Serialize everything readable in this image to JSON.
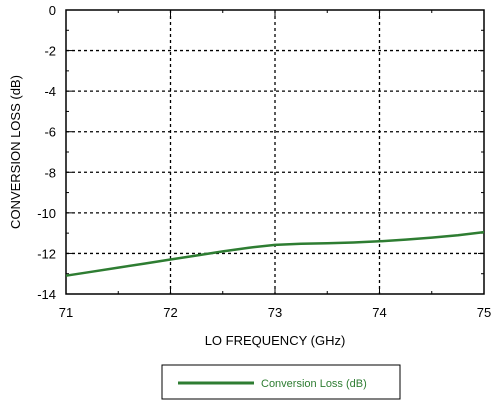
{
  "chart_data": {
    "type": "line",
    "title": "",
    "xlabel": "LO FREQUENCY (GHz)",
    "ylabel": "CONVERSION LOSS (dB)",
    "xlim": [
      71,
      75
    ],
    "ylim": [
      -14,
      0
    ],
    "xticks": [
      71,
      72,
      73,
      74,
      75
    ],
    "yticks": [
      0,
      -2,
      -4,
      -6,
      -8,
      -10,
      -12,
      -14
    ],
    "xtick_labels": [
      "71",
      "72",
      "73",
      "74",
      "75"
    ],
    "ytick_labels": [
      "0",
      "-2",
      "-4",
      "-6",
      "-8",
      "-10",
      "-12",
      "-14"
    ],
    "grid": true,
    "grid_style": "dotted",
    "legend_position": "bottom",
    "series": [
      {
        "name": "Conversion Loss (dB)",
        "color": "#2e7d32",
        "x": [
          71.0,
          71.25,
          71.5,
          71.75,
          72.0,
          72.25,
          72.5,
          72.75,
          73.0,
          73.25,
          73.5,
          73.75,
          74.0,
          74.25,
          74.5,
          74.75,
          75.0
        ],
        "y": [
          -13.1,
          -12.9,
          -12.7,
          -12.5,
          -12.3,
          -12.1,
          -11.9,
          -11.72,
          -11.58,
          -11.52,
          -11.5,
          -11.46,
          -11.4,
          -11.32,
          -11.22,
          -11.1,
          -10.95
        ]
      }
    ]
  }
}
